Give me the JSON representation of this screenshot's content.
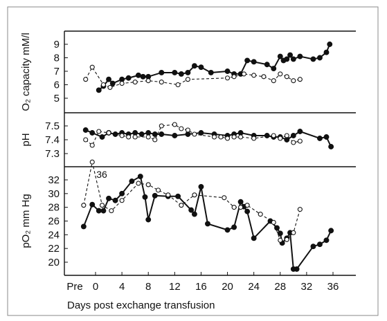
{
  "chart_data": [
    {
      "type": "line",
      "ylabel": "O₂ capacity mM/l",
      "yticks": [
        "5",
        "6",
        "7",
        "8",
        "9"
      ],
      "ylim": [
        4.6,
        9.9
      ],
      "series": [
        {
          "style": "filled",
          "points": [
            [
              0.5,
              5.6
            ],
            [
              1.2,
              5.9
            ],
            [
              2,
              6.4
            ],
            [
              2.6,
              6.1
            ],
            [
              4,
              6.4
            ],
            [
              5,
              6.5
            ],
            [
              6.5,
              6.7
            ],
            [
              7.2,
              6.6
            ],
            [
              8,
              6.6
            ],
            [
              10,
              6.9
            ],
            [
              12,
              6.9
            ],
            [
              13,
              6.8
            ],
            [
              14,
              6.9
            ],
            [
              15,
              7.4
            ],
            [
              16,
              7.3
            ],
            [
              17.5,
              6.9
            ],
            [
              20,
              7
            ],
            [
              21,
              6.8
            ],
            [
              22,
              6.8
            ],
            [
              23,
              7.8
            ],
            [
              24,
              7.7
            ],
            [
              26,
              7.5
            ],
            [
              27,
              7.2
            ],
            [
              28,
              8.1
            ],
            [
              28.5,
              7.8
            ],
            [
              29,
              7.9
            ],
            [
              29.5,
              8.2
            ],
            [
              30,
              7.9
            ],
            [
              31,
              8.1
            ],
            [
              33,
              7.9
            ],
            [
              34,
              8
            ],
            [
              35,
              8.4
            ],
            [
              35.5,
              9
            ]
          ]
        },
        {
          "style": "open",
          "points": [
            [
              -1.5,
              6.4
            ],
            [
              -0.5,
              7.3
            ],
            [
              1.2,
              6
            ],
            [
              2.2,
              5.8
            ],
            [
              4,
              6.1
            ],
            [
              6,
              6.2
            ],
            [
              8,
              6.3
            ],
            [
              10,
              6.2
            ],
            [
              12.5,
              6
            ],
            [
              14,
              6.4
            ],
            [
              20,
              6.5
            ],
            [
              21,
              6.6
            ],
            [
              22.5,
              6.8
            ],
            [
              24,
              6.7
            ],
            [
              25.5,
              6.6
            ],
            [
              27,
              6.3
            ],
            [
              28,
              6.8
            ],
            [
              29,
              6.6
            ],
            [
              30,
              6.3
            ],
            [
              31,
              6.4
            ]
          ]
        }
      ]
    },
    {
      "type": "line",
      "ylabel": "pH",
      "yticks": [
        "7.3",
        "7.4",
        "7.5"
      ],
      "ylim": [
        7.22,
        7.58
      ],
      "series": [
        {
          "style": "filled",
          "points": [
            [
              -1.5,
              7.47
            ],
            [
              -0.5,
              7.45
            ],
            [
              1,
              7.42
            ],
            [
              2,
              7.45
            ],
            [
              3,
              7.44
            ],
            [
              4,
              7.45
            ],
            [
              5,
              7.44
            ],
            [
              6,
              7.45
            ],
            [
              7,
              7.44
            ],
            [
              8,
              7.45
            ],
            [
              9,
              7.44
            ],
            [
              10,
              7.44
            ],
            [
              12,
              7.43
            ],
            [
              14,
              7.44
            ],
            [
              16,
              7.45
            ],
            [
              18,
              7.44
            ],
            [
              20,
              7.43
            ],
            [
              21,
              7.44
            ],
            [
              22,
              7.45
            ],
            [
              24,
              7.43
            ],
            [
              26,
              7.43
            ],
            [
              27,
              7.42
            ],
            [
              28,
              7.42
            ],
            [
              29,
              7.4
            ],
            [
              30,
              7.43
            ],
            [
              31,
              7.46
            ],
            [
              34,
              7.41
            ],
            [
              35,
              7.42
            ],
            [
              35.7,
              7.35
            ]
          ]
        },
        {
          "style": "open",
          "points": [
            [
              -1.5,
              7.4
            ],
            [
              -0.5,
              7.36
            ],
            [
              0.5,
              7.46
            ],
            [
              2,
              7.45
            ],
            [
              4,
              7.43
            ],
            [
              5,
              7.42
            ],
            [
              6,
              7.42
            ],
            [
              8,
              7.42
            ],
            [
              9,
              7.4
            ],
            [
              10,
              7.5
            ],
            [
              12,
              7.51
            ],
            [
              13,
              7.48
            ],
            [
              14,
              7.47
            ],
            [
              15,
              7.44
            ],
            [
              18,
              7.42
            ],
            [
              19,
              7.42
            ],
            [
              20,
              7.41
            ],
            [
              21,
              7.42
            ],
            [
              22,
              7.42
            ],
            [
              24,
              7.41
            ],
            [
              27,
              7.43
            ],
            [
              28,
              7.41
            ],
            [
              29,
              7.43
            ],
            [
              30,
              7.38
            ],
            [
              31,
              7.39
            ]
          ]
        }
      ]
    },
    {
      "type": "line",
      "ylabel": "pO₂ mm Hg",
      "yticks": [
        "20",
        "22",
        "24",
        "26",
        "28",
        "30",
        "32"
      ],
      "ylim": [
        17.4,
        34.6
      ],
      "annotations": [
        "36"
      ],
      "xlabel": "Days post exchange transfusion",
      "xticks": [
        "Pre",
        "0",
        "4",
        "8",
        "12",
        "16",
        "20",
        "24",
        "28",
        "32",
        "36"
      ],
      "xlim": [
        -2,
        37
      ],
      "series": [
        {
          "style": "filled",
          "points": [
            [
              -1.8,
              25.2
            ],
            [
              -0.5,
              28.4
            ],
            [
              0.5,
              27.5
            ],
            [
              1.2,
              27.5
            ],
            [
              2,
              29.3
            ],
            [
              3,
              29
            ],
            [
              4,
              30
            ],
            [
              5.5,
              31.8
            ],
            [
              6.8,
              32.5
            ],
            [
              7.5,
              29.5
            ],
            [
              8,
              26.2
            ],
            [
              9,
              29.7
            ],
            [
              11,
              29.6
            ],
            [
              12.5,
              29.6
            ],
            [
              14.5,
              27.6
            ],
            [
              15,
              27
            ],
            [
              16,
              31
            ],
            [
              17,
              25.6
            ],
            [
              20,
              24.7
            ],
            [
              21,
              25.1
            ],
            [
              22,
              28.8
            ],
            [
              22.5,
              28.1
            ],
            [
              23,
              27.4
            ],
            [
              24,
              23.5
            ],
            [
              26.5,
              26
            ],
            [
              27.5,
              25
            ],
            [
              28,
              24.2
            ],
            [
              28.3,
              22.8
            ],
            [
              29,
              23.5
            ],
            [
              29.5,
              24.3
            ],
            [
              30,
              19
            ],
            [
              30.5,
              19
            ],
            [
              33,
              22.3
            ],
            [
              34,
              22.6
            ],
            [
              35,
              23.2
            ],
            [
              35.7,
              24.6
            ]
          ]
        },
        {
          "style": "open",
          "points": [
            [
              -1.8,
              28.3
            ],
            [
              -0.5,
              34.6
            ],
            [
              1,
              28.3
            ],
            [
              2.4,
              27.5
            ],
            [
              4,
              29
            ],
            [
              6.5,
              31.5
            ],
            [
              8,
              31.3
            ],
            [
              9.5,
              30.5
            ],
            [
              11,
              29.8
            ],
            [
              13,
              28.3
            ],
            [
              15,
              29.8
            ],
            [
              19.5,
              29.4
            ],
            [
              21,
              28
            ],
            [
              22,
              28
            ],
            [
              23,
              28.3
            ],
            [
              25,
              27
            ],
            [
              27,
              25.8
            ],
            [
              28,
              23.2
            ],
            [
              29,
              23.3
            ],
            [
              30,
              24.3
            ],
            [
              31,
              27.7
            ]
          ]
        }
      ]
    }
  ]
}
